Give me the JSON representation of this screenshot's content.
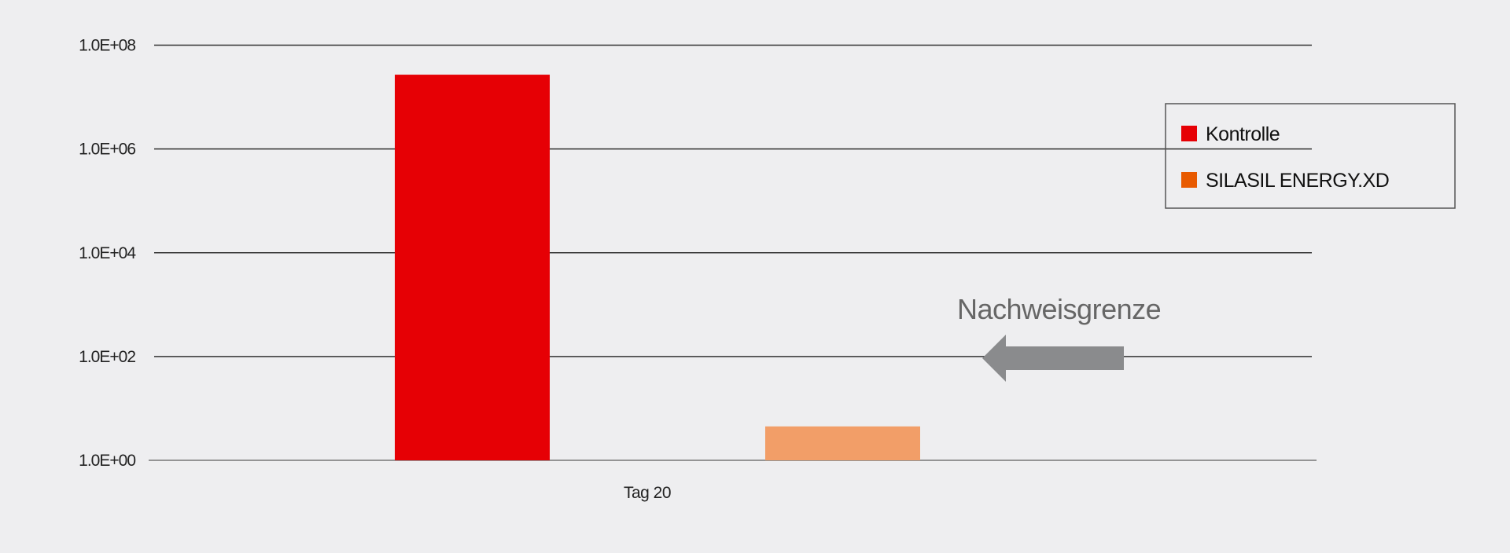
{
  "chart_data": {
    "type": "bar",
    "title": "",
    "xlabel": "",
    "ylabel": "",
    "yscale": "log",
    "ylim": [
      1,
      100000000
    ],
    "yticks": [
      1,
      100,
      10000,
      1000000,
      100000000
    ],
    "ytick_labels": [
      "1.0E+00",
      "1.0E+02",
      "1.0E+04",
      "1.0E+06",
      "1.0E+08"
    ],
    "grid": true,
    "categories": [
      "Tag 20"
    ],
    "series": [
      {
        "name": "Kontrolle",
        "values": [
          27000000
        ],
        "color": "#e60005",
        "legend_color": "#e60005"
      },
      {
        "name": "SILASIL ENERGY.XD",
        "values": [
          4.5
        ],
        "color": "#f29e68",
        "legend_color": "#e85a00"
      }
    ],
    "legend_placement": "top-right",
    "annotation": {
      "text": "Nachweisgrenze",
      "arrow_at_value": 100,
      "arrow_direction": "left",
      "color": "#8a8b8d"
    },
    "background": "#eeeef0"
  }
}
